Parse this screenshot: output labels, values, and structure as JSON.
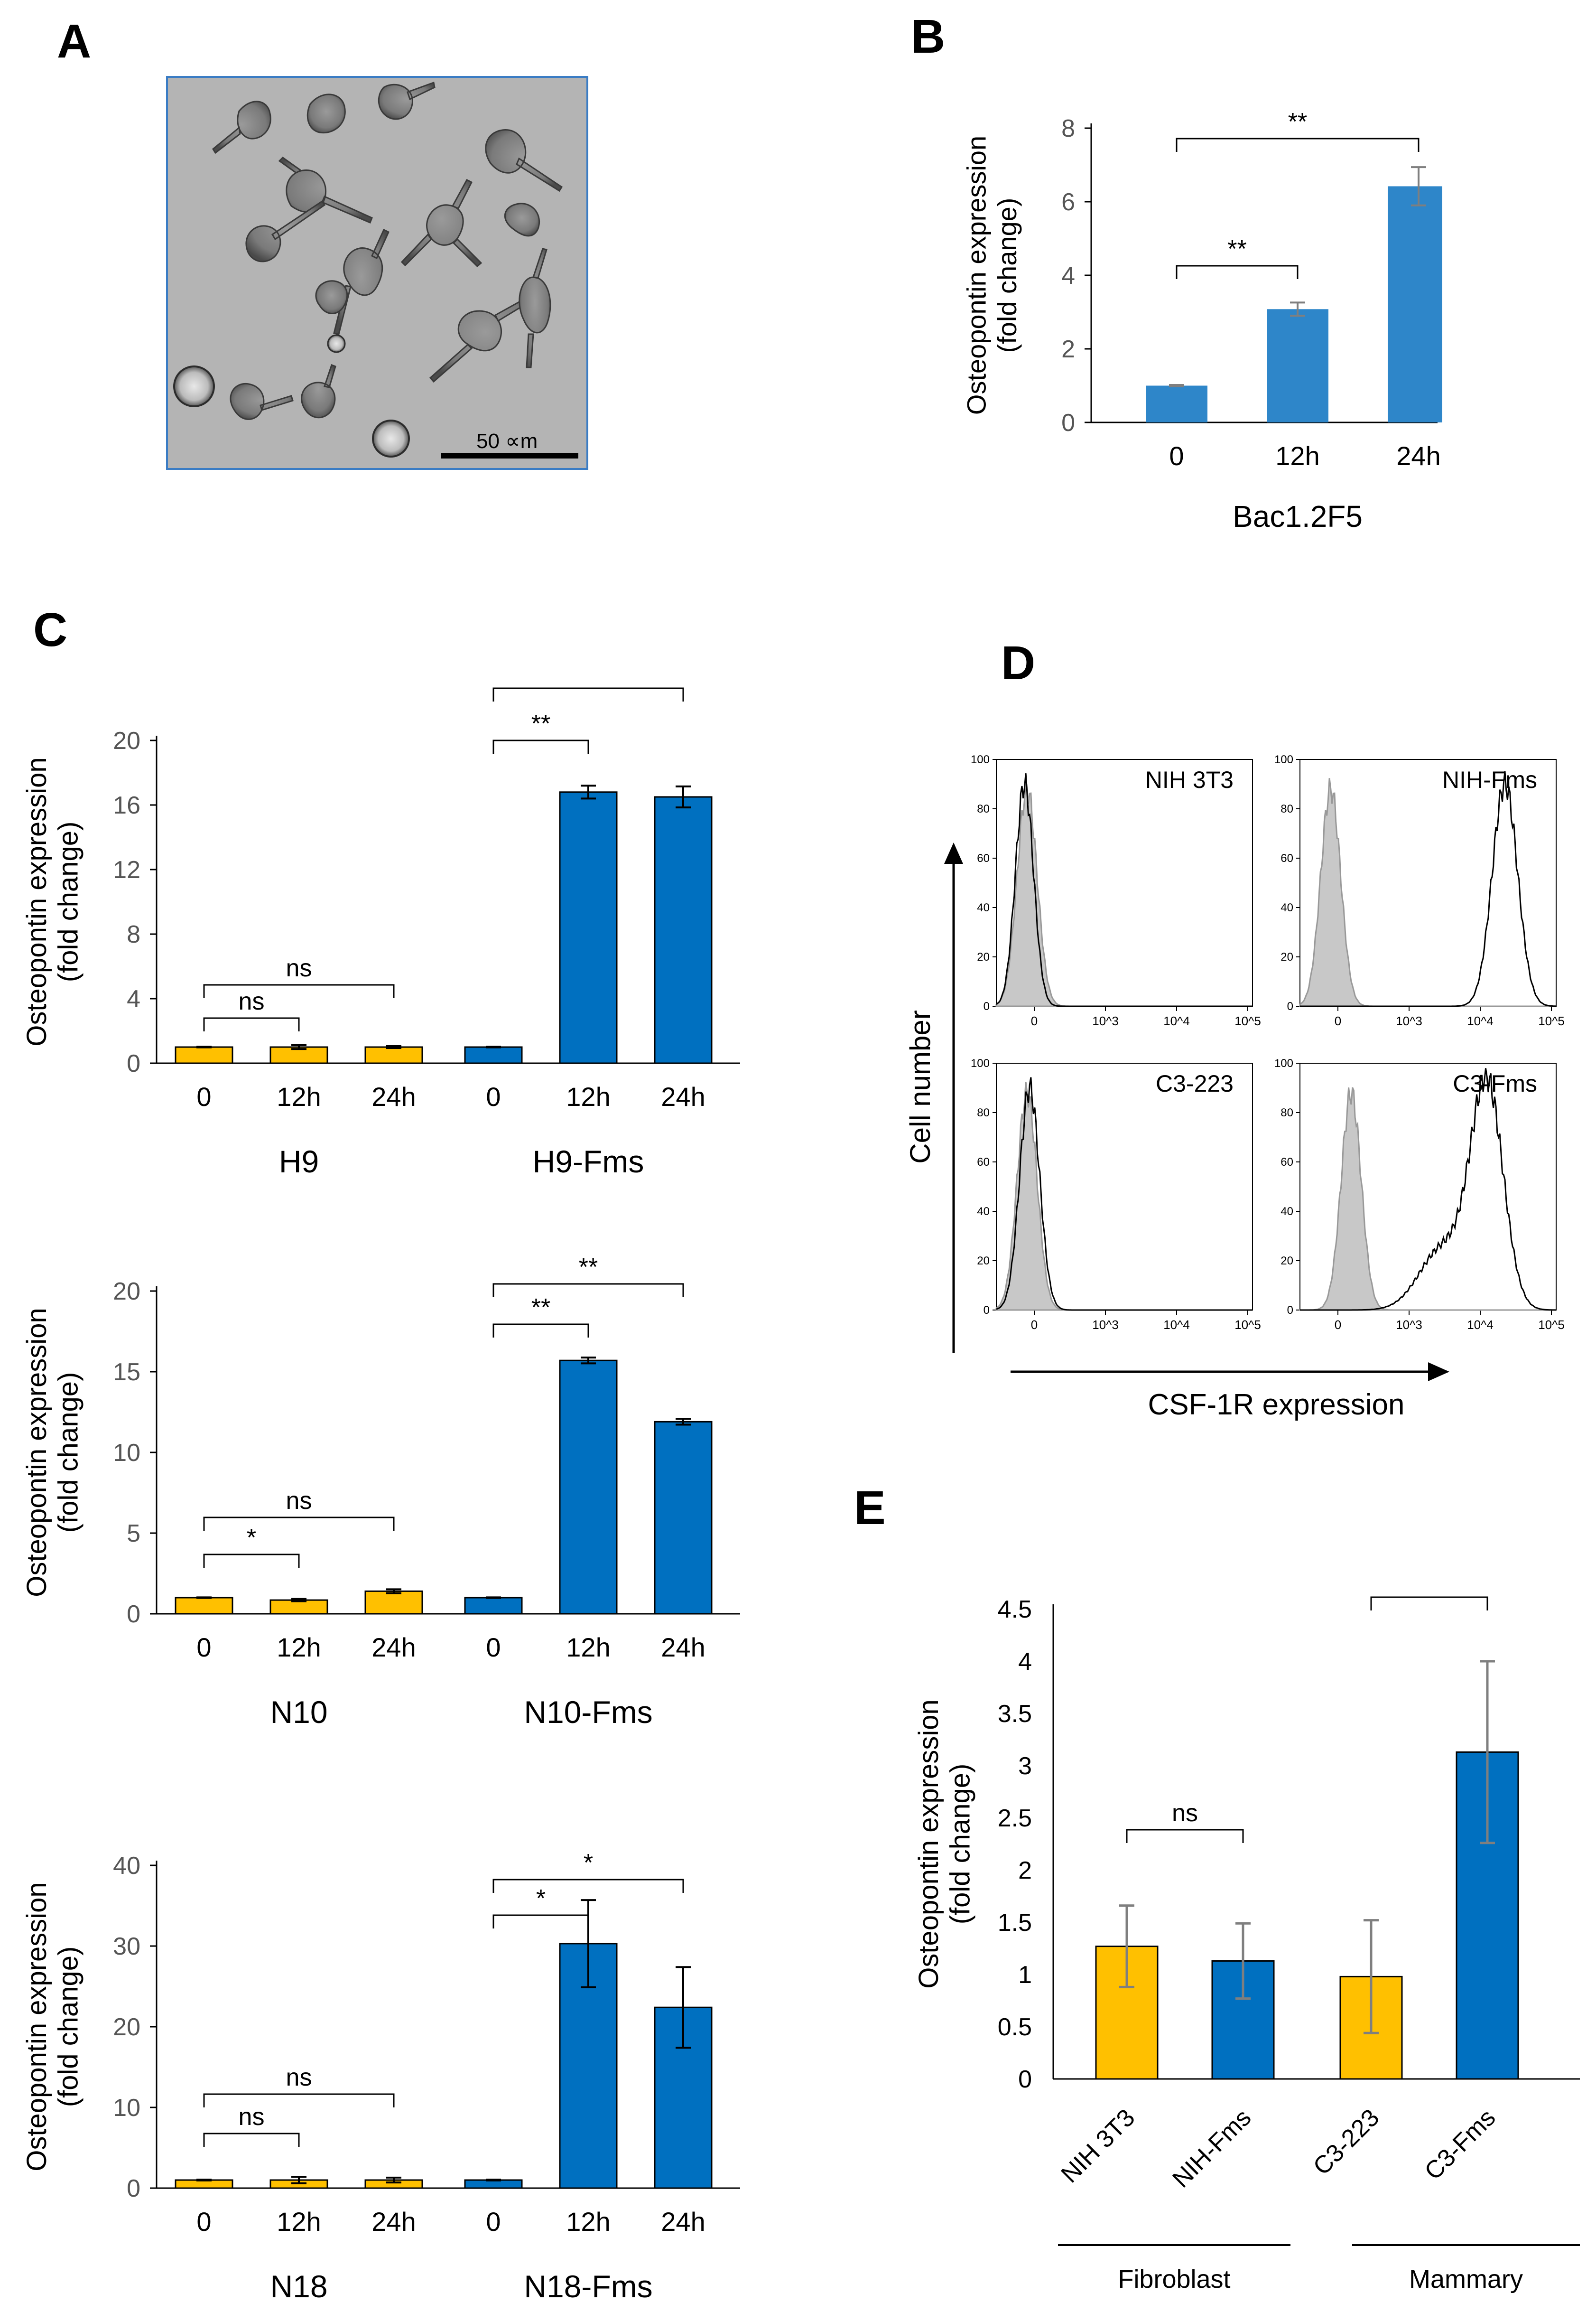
{
  "panels": {
    "A": "A",
    "B": "B",
    "C": "C",
    "D": "D",
    "E": "E"
  },
  "panel_a": {
    "scale_label": "50 ∝m"
  },
  "colors": {
    "yellow": "#FFC000",
    "blue": "#0070C0",
    "blue_b": "#2E86C9",
    "err_gray": "#7f7f7f",
    "hist_gray": "#c8c8c8"
  },
  "chart_data": [
    {
      "id": "B",
      "type": "bar",
      "ylabel": "Osteopontin expression\n(fold change)",
      "ylim": [
        0,
        8
      ],
      "yticks": [
        0,
        2,
        4,
        6,
        8
      ],
      "groups": [
        {
          "label": "Bac1.2F5",
          "categories": [
            "0",
            "12h",
            "24h"
          ],
          "values": [
            1.0,
            3.08,
            6.42
          ],
          "errors": [
            0.02,
            0.18,
            0.52
          ],
          "color": "blue_b"
        }
      ],
      "significance": [
        {
          "from": 0,
          "to": 1,
          "label": "**"
        },
        {
          "from": 0,
          "to": 2,
          "label": "**"
        }
      ]
    },
    {
      "id": "C1",
      "type": "bar",
      "ylabel": "Osteopontin expression\n(fold change)",
      "ylim": [
        0,
        20
      ],
      "yticks": [
        0,
        4,
        8,
        12,
        16,
        20
      ],
      "groups": [
        {
          "label": "H9",
          "categories": [
            "0",
            "12h",
            "24h"
          ],
          "values": [
            1.0,
            1.0,
            1.0
          ],
          "errors": [
            0.02,
            0.12,
            0.06
          ],
          "color": "yellow"
        },
        {
          "label": "H9-Fms",
          "categories": [
            "0",
            "12h",
            "24h"
          ],
          "values": [
            1.0,
            16.8,
            16.5
          ],
          "errors": [
            0.02,
            0.4,
            0.65
          ],
          "color": "blue"
        }
      ],
      "significance": [
        {
          "from": 0,
          "to": 1,
          "label": "ns"
        },
        {
          "from": 0,
          "to": 2,
          "label": "ns"
        },
        {
          "from": 3,
          "to": 4,
          "label": "**"
        },
        {
          "from": 3,
          "to": 5,
          "label": "**"
        }
      ]
    },
    {
      "id": "C2",
      "type": "bar",
      "ylabel": "Osteopontin expression\n(fold change)",
      "ylim": [
        0,
        20
      ],
      "yticks": [
        0,
        5,
        10,
        15,
        20
      ],
      "groups": [
        {
          "label": "N10",
          "categories": [
            "0",
            "12h",
            "24h"
          ],
          "values": [
            1.0,
            0.85,
            1.4
          ],
          "errors": [
            0.02,
            0.07,
            0.12
          ],
          "color": "yellow"
        },
        {
          "label": "N10-Fms",
          "categories": [
            "0",
            "12h",
            "24h"
          ],
          "values": [
            1.0,
            15.7,
            11.9
          ],
          "errors": [
            0.02,
            0.18,
            0.18
          ],
          "color": "blue"
        }
      ],
      "significance": [
        {
          "from": 0,
          "to": 1,
          "label": "*"
        },
        {
          "from": 0,
          "to": 2,
          "label": "ns"
        },
        {
          "from": 3,
          "to": 4,
          "label": "**"
        },
        {
          "from": 3,
          "to": 5,
          "label": "**"
        }
      ]
    },
    {
      "id": "C3",
      "type": "bar",
      "ylabel": "Osteopontin expression\n(fold change)",
      "ylim": [
        0,
        40
      ],
      "yticks": [
        0,
        10,
        20,
        30,
        40
      ],
      "groups": [
        {
          "label": "N18",
          "categories": [
            "0",
            "12h",
            "24h"
          ],
          "values": [
            1.0,
            1.0,
            1.0
          ],
          "errors": [
            0.05,
            0.4,
            0.3
          ],
          "color": "yellow"
        },
        {
          "label": "N18-Fms",
          "categories": [
            "0",
            "12h",
            "24h"
          ],
          "values": [
            1.0,
            30.3,
            22.4
          ],
          "errors": [
            0.05,
            5.4,
            5.0
          ],
          "color": "blue"
        }
      ],
      "significance": [
        {
          "from": 0,
          "to": 1,
          "label": "ns"
        },
        {
          "from": 0,
          "to": 2,
          "label": "ns"
        },
        {
          "from": 3,
          "to": 4,
          "label": "*"
        },
        {
          "from": 3,
          "to": 5,
          "label": "*"
        }
      ]
    },
    {
      "id": "D",
      "type": "histogram",
      "xlabel": "CSF-1R expression",
      "ylabel": "Cell number",
      "ylim": [
        0,
        100
      ],
      "yticks": [
        0,
        20,
        40,
        60,
        80,
        100
      ],
      "xticks": [
        0,
        "10^3",
        "10^4",
        "10^5"
      ],
      "plots": [
        {
          "title": "NIH 3T3",
          "control_peak": 0.12,
          "sample_peak": 0.11,
          "sample_width": 0.05,
          "tail": false
        },
        {
          "title": "NIH-Fms",
          "control_peak": 0.12,
          "sample_peak": 0.8,
          "sample_width": 0.07,
          "tail": false
        },
        {
          "title": "C3-223",
          "control_peak": 0.12,
          "sample_peak": 0.13,
          "sample_width": 0.055,
          "tail": false
        },
        {
          "title": "C3-Fms",
          "control_peak": 0.2,
          "sample_peak": 0.73,
          "sample_width": 0.09,
          "tail": true
        }
      ]
    },
    {
      "id": "E",
      "type": "bar",
      "ylabel": "Osteopontin expression\n(fold change)",
      "ylim": [
        0,
        4.5
      ],
      "yticks": [
        "0",
        "0.5",
        "1",
        "1.5",
        "2",
        "2.5",
        "3",
        "3.5",
        "4",
        "4.5"
      ],
      "categories": [
        "NIH 3T3",
        "NIH-Fms",
        "C3-223",
        "C3-Fms"
      ],
      "values": [
        1.27,
        1.13,
        0.98,
        3.13
      ],
      "errors": [
        0.39,
        0.36,
        0.54,
        0.87
      ],
      "colors": [
        "yellow",
        "blue",
        "yellow",
        "blue"
      ],
      "groups": [
        {
          "label": "Fibroblast",
          "from": 0,
          "to": 1
        },
        {
          "label": "Mammary",
          "from": 2,
          "to": 3
        }
      ],
      "significance": [
        {
          "from": 0,
          "to": 1,
          "label": "ns"
        },
        {
          "from": 2,
          "to": 3,
          "label": "**"
        }
      ]
    }
  ]
}
